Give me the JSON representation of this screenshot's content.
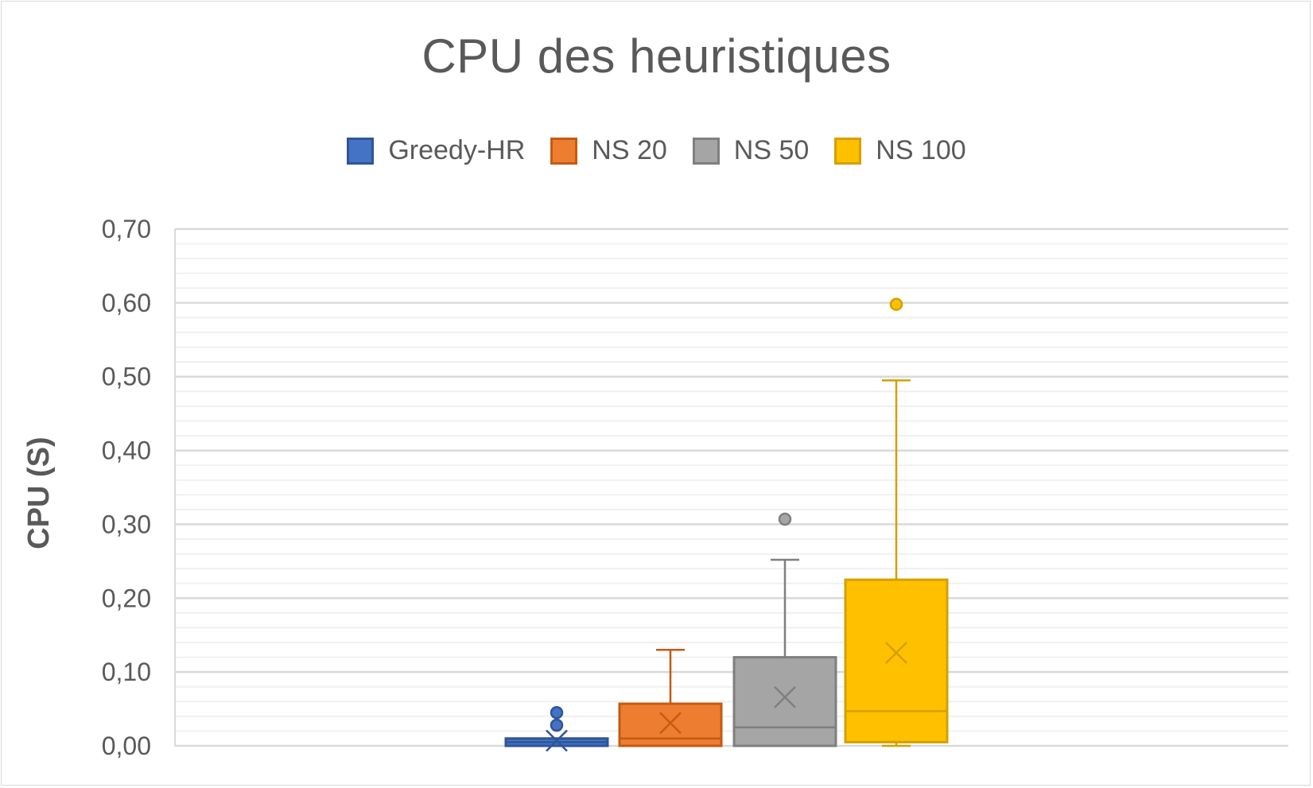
{
  "chart_data": {
    "type": "boxplot",
    "title": "CPU des heuristiques",
    "ylabel": "CPU (S)",
    "xlabel": "",
    "ylim": [
      0,
      0.7
    ],
    "y_ticks": [
      "0,00",
      "0,10",
      "0,20",
      "0,30",
      "0,40",
      "0,50",
      "0,60",
      "0,70"
    ],
    "y_tick_values": [
      0,
      0.1,
      0.2,
      0.3,
      0.4,
      0.5,
      0.6,
      0.7
    ],
    "grid": "major and minor horizontal",
    "legend_position": "top",
    "series": [
      {
        "name": "Greedy-HR",
        "color": "#4472c4",
        "border": "#2f5597",
        "min": 0.0,
        "q1": 0.0,
        "median": 0.005,
        "q3": 0.01,
        "max": 0.01,
        "mean": 0.007,
        "outliers": [
          0.028,
          0.045
        ]
      },
      {
        "name": "NS 20",
        "color": "#ed7d31",
        "border": "#c55a11",
        "min": 0.0,
        "q1": 0.0,
        "median": 0.01,
        "q3": 0.057,
        "max": 0.13,
        "mean": 0.031,
        "outliers": []
      },
      {
        "name": "NS 50",
        "color": "#a5a5a5",
        "border": "#7f7f7f",
        "min": 0.0,
        "q1": 0.0,
        "median": 0.025,
        "q3": 0.12,
        "max": 0.252,
        "mean": 0.066,
        "outliers": [
          0.307
        ]
      },
      {
        "name": "NS 100",
        "color": "#ffc000",
        "border": "#d4a000",
        "min": 0.0,
        "q1": 0.005,
        "median": 0.047,
        "q3": 0.225,
        "max": 0.495,
        "mean": 0.126,
        "outliers": [
          0.598
        ]
      }
    ]
  }
}
